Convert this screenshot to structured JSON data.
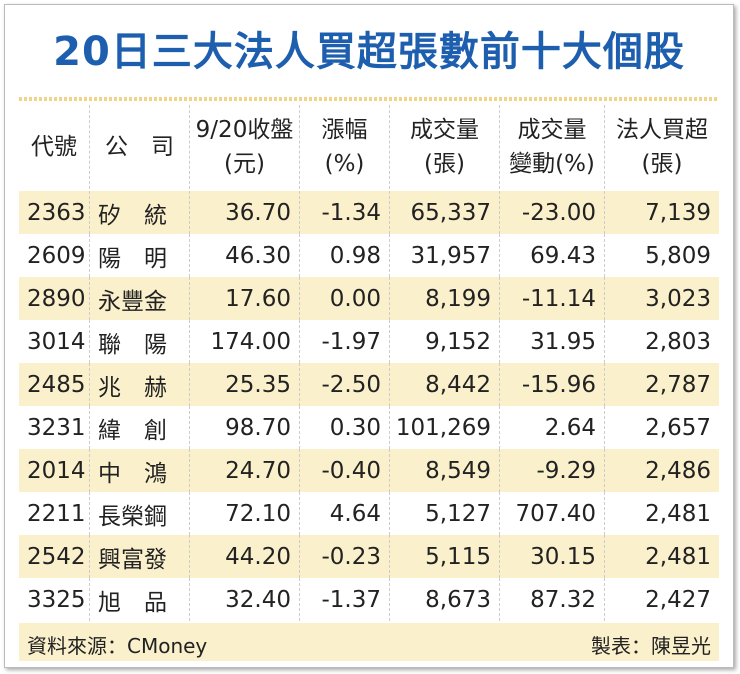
{
  "title": "20日三大法人買超張數前十大個股",
  "table": {
    "header": [
      [
        "代號"
      ],
      [
        "公　司"
      ],
      [
        "9/20收盤",
        "(元)"
      ],
      [
        "漲幅",
        "(%)"
      ],
      [
        "成交量",
        "(張)"
      ],
      [
        "成交量",
        "變動(%)"
      ],
      [
        "法人買超",
        "(張)"
      ]
    ],
    "rows": [
      [
        "2363",
        "矽　統",
        "36.70",
        "-1.34",
        "65,337",
        "-23.00",
        "7,139"
      ],
      [
        "2609",
        "陽　明",
        "46.30",
        "0.98",
        "31,957",
        "69.43",
        "5,809"
      ],
      [
        "2890",
        "永豐金",
        "17.60",
        "0.00",
        "8,199",
        "-11.14",
        "3,023"
      ],
      [
        "3014",
        "聯　陽",
        "174.00",
        "-1.97",
        "9,152",
        "31.95",
        "2,803"
      ],
      [
        "2485",
        "兆　赫",
        "25.35",
        "-2.50",
        "8,442",
        "-15.96",
        "2,787"
      ],
      [
        "3231",
        "緯　創",
        "98.70",
        "0.30",
        "101,269",
        "2.64",
        "2,657"
      ],
      [
        "2014",
        "中　鴻",
        "24.70",
        "-0.40",
        "8,549",
        "-9.29",
        "2,486"
      ],
      [
        "2211",
        "長榮鋼",
        "72.10",
        "4.64",
        "5,127",
        "707.40",
        "2,481"
      ],
      [
        "2542",
        "興富發",
        "44.20",
        "-0.23",
        "5,115",
        "30.15",
        "2,481"
      ],
      [
        "3325",
        "旭　品",
        "32.40",
        "-1.37",
        "8,673",
        "87.32",
        "2,427"
      ]
    ]
  },
  "footer": {
    "source": "資料來源：CMoney",
    "author": "製表：陳昱光"
  }
}
